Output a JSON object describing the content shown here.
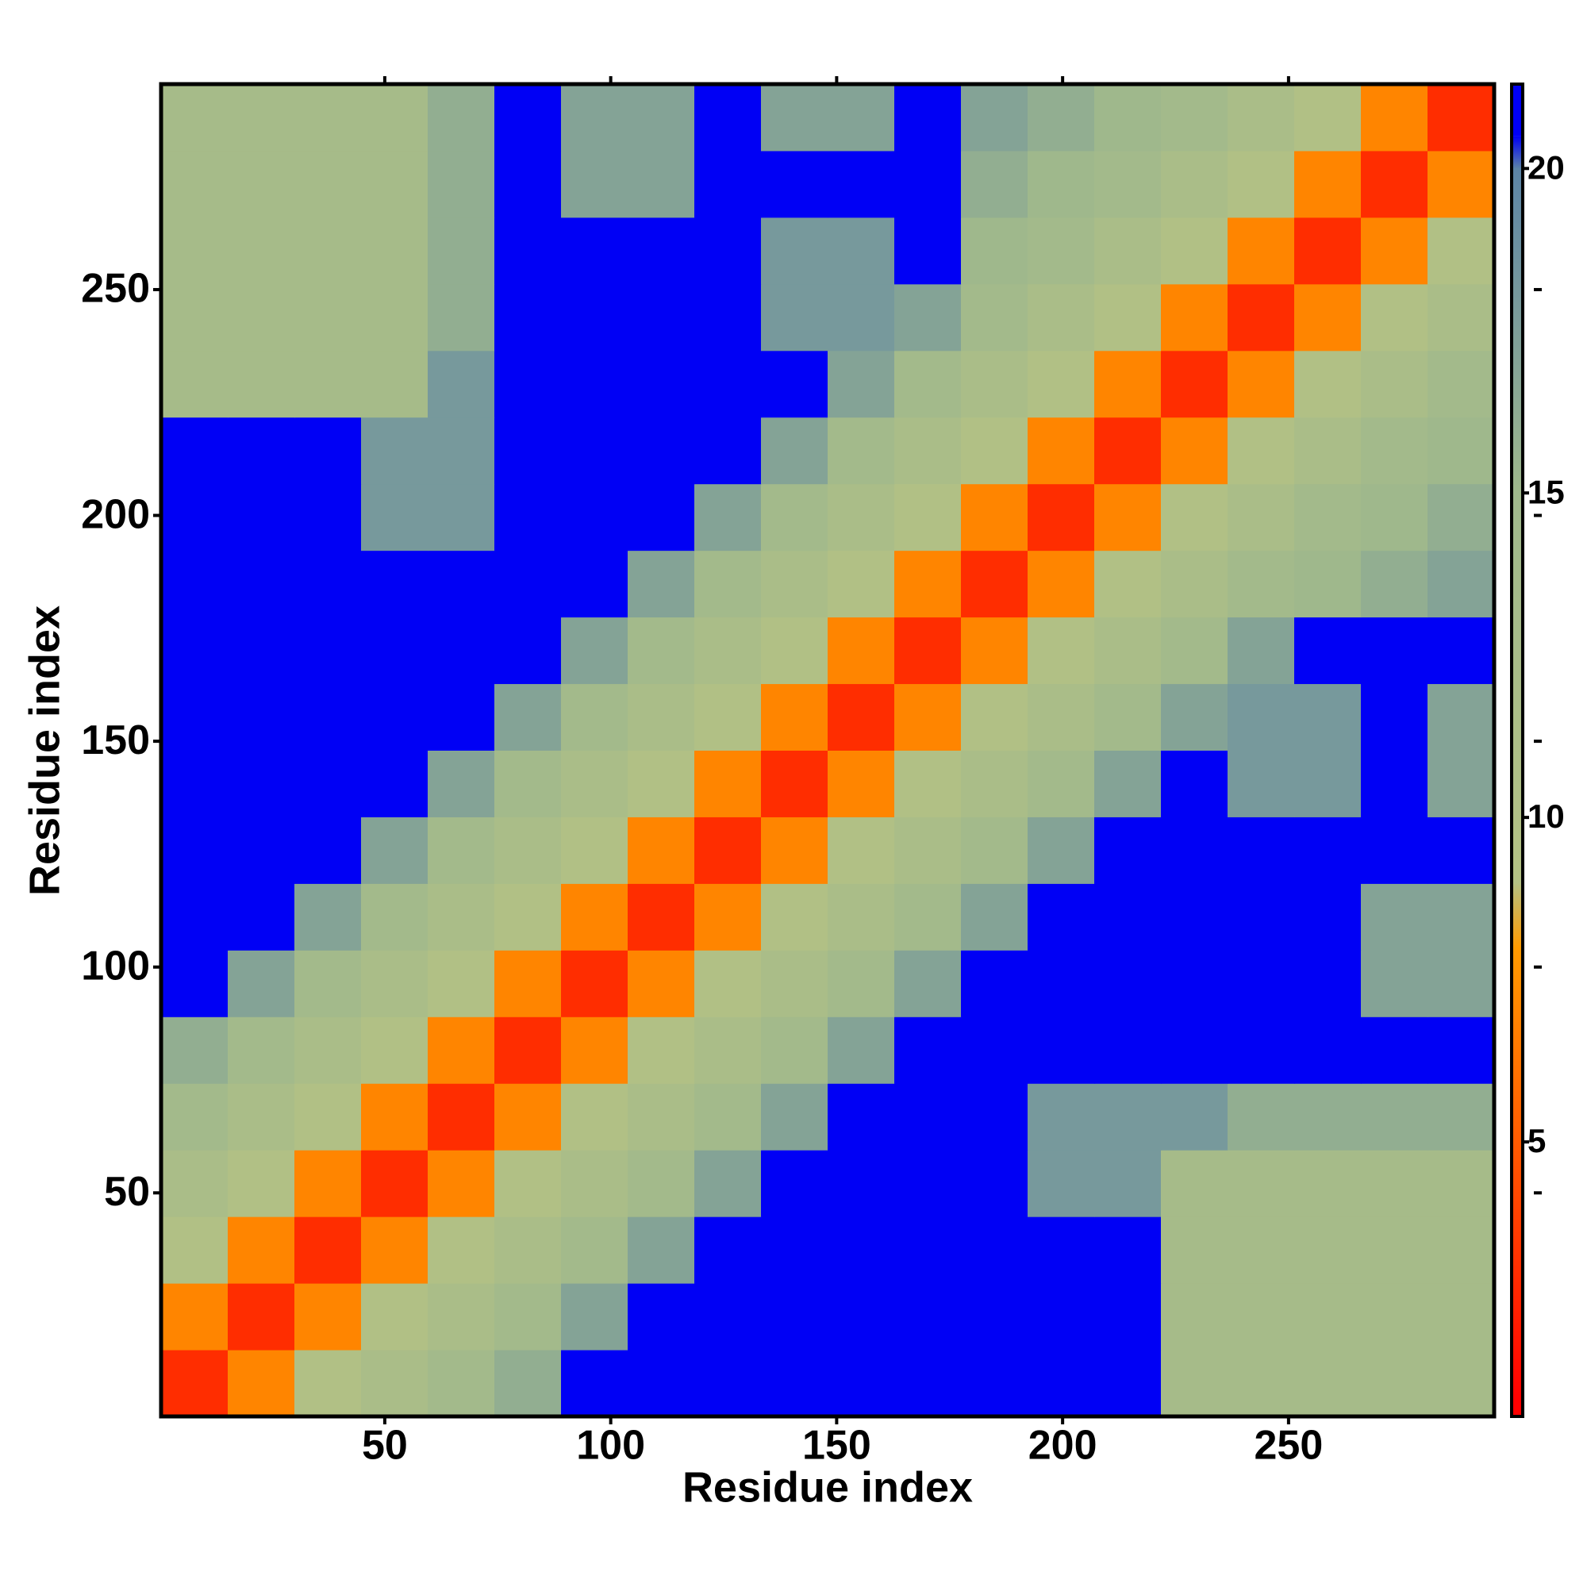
{
  "chart_data": {
    "type": "heatmap",
    "xlabel": "Residue index",
    "ylabel": "Residue index",
    "xlim": [
      0.5,
      295.5
    ],
    "ylim": [
      0.5,
      295.5
    ],
    "xticks": [
      50,
      100,
      150,
      200,
      250
    ],
    "yticks": [
      50,
      100,
      150,
      200,
      250
    ],
    "xbins": [
      0.5,
      15.25,
      30,
      44.75,
      59.5,
      74.25,
      89,
      103.75,
      118.5,
      133.25,
      148,
      162.75,
      177.5,
      192.25,
      207,
      221.75,
      236.5,
      251.25,
      266,
      280.75,
      295.5
    ],
    "ybins": [
      0.5,
      15.25,
      30,
      44.75,
      59.5,
      74.25,
      89,
      103.75,
      118.5,
      133.25,
      148,
      162.75,
      177.5,
      192.25,
      207,
      221.75,
      236.5,
      251.25,
      266,
      280.75,
      295.5
    ],
    "z": [
      [
        3,
        7,
        10,
        12,
        14,
        16,
        21,
        21,
        21,
        21,
        21,
        21,
        21,
        21,
        21,
        13,
        13,
        13,
        13,
        13
      ],
      [
        7,
        3,
        7,
        10,
        12,
        14,
        17,
        21,
        21,
        21,
        21,
        21,
        21,
        21,
        21,
        13,
        13,
        13,
        13,
        13
      ],
      [
        10,
        7,
        3,
        7,
        10,
        12,
        14,
        17,
        21,
        21,
        21,
        21,
        21,
        21,
        21,
        13,
        13,
        13,
        13,
        13
      ],
      [
        12,
        10,
        7,
        3,
        7,
        10,
        12,
        14,
        17,
        21,
        21,
        21,
        21,
        18,
        18,
        13,
        13,
        13,
        13,
        13
      ],
      [
        14,
        12,
        10,
        7,
        3,
        7,
        10,
        12,
        14,
        17,
        21,
        21,
        21,
        18,
        18,
        18,
        16,
        16,
        16,
        16
      ],
      [
        16,
        14,
        12,
        10,
        7,
        3,
        7,
        10,
        12,
        14,
        17,
        21,
        21,
        21,
        21,
        21,
        21,
        21,
        21,
        21
      ],
      [
        21,
        17,
        14,
        12,
        10,
        7,
        3,
        7,
        10,
        12,
        14,
        17,
        21,
        21,
        21,
        21,
        21,
        21,
        17,
        17
      ],
      [
        21,
        21,
        17,
        14,
        12,
        10,
        7,
        3,
        7,
        10,
        12,
        14,
        17,
        21,
        21,
        21,
        21,
        21,
        17,
        17
      ],
      [
        21,
        21,
        21,
        17,
        14,
        12,
        10,
        7,
        3,
        7,
        10,
        12,
        14,
        17,
        21,
        21,
        21,
        21,
        21,
        21
      ],
      [
        21,
        21,
        21,
        21,
        17,
        14,
        12,
        10,
        7,
        3,
        7,
        10,
        12,
        14,
        17,
        21,
        18,
        18,
        21,
        17
      ],
      [
        21,
        21,
        21,
        21,
        21,
        17,
        14,
        12,
        10,
        7,
        3,
        7,
        10,
        12,
        14,
        17,
        18,
        18,
        21,
        17
      ],
      [
        21,
        21,
        21,
        21,
        21,
        21,
        17,
        14,
        12,
        10,
        7,
        3,
        7,
        10,
        12,
        14,
        17,
        21,
        21,
        21
      ],
      [
        21,
        21,
        21,
        21,
        21,
        21,
        21,
        17,
        14,
        12,
        10,
        7,
        3,
        7,
        10,
        12,
        14,
        15,
        16,
        17
      ],
      [
        21,
        21,
        21,
        18,
        18,
        21,
        21,
        21,
        17,
        14,
        12,
        10,
        7,
        3,
        7,
        10,
        12,
        14,
        15,
        16
      ],
      [
        21,
        21,
        21,
        18,
        18,
        21,
        21,
        21,
        21,
        17,
        14,
        12,
        10,
        7,
        3,
        7,
        10,
        12,
        14,
        15
      ],
      [
        13,
        13,
        13,
        13,
        18,
        21,
        21,
        21,
        21,
        21,
        17,
        14,
        12,
        10,
        7,
        3,
        7,
        10,
        12,
        14
      ],
      [
        13,
        13,
        13,
        13,
        16,
        21,
        21,
        21,
        21,
        18,
        18,
        17,
        14,
        12,
        10,
        7,
        3,
        7,
        10,
        12
      ],
      [
        13,
        13,
        13,
        13,
        16,
        21,
        21,
        21,
        21,
        18,
        18,
        21,
        15,
        14,
        12,
        10,
        7,
        3,
        7,
        10
      ],
      [
        13,
        13,
        13,
        13,
        16,
        21,
        17,
        17,
        21,
        21,
        21,
        21,
        16,
        15,
        14,
        12,
        10,
        7,
        3,
        7
      ],
      [
        13,
        13,
        13,
        13,
        16,
        21,
        17,
        17,
        21,
        17,
        17,
        21,
        17,
        16,
        15,
        14,
        12,
        10,
        7,
        3
      ]
    ],
    "colorscale": [
      {
        "value": 1,
        "color": "#ff0000"
      },
      {
        "value": 5,
        "color": "#ff5a00"
      },
      {
        "value": 8,
        "color": "#ff9a00"
      },
      {
        "value": 9,
        "color": "#b4c284"
      },
      {
        "value": 15,
        "color": "#9fb88c"
      },
      {
        "value": 20,
        "color": "#5c84a6"
      },
      {
        "value": 20.5,
        "color": "#0000f5"
      }
    ],
    "clim": [
      0.77,
      21.3
    ],
    "cticks": [
      5,
      10,
      15,
      20
    ]
  }
}
